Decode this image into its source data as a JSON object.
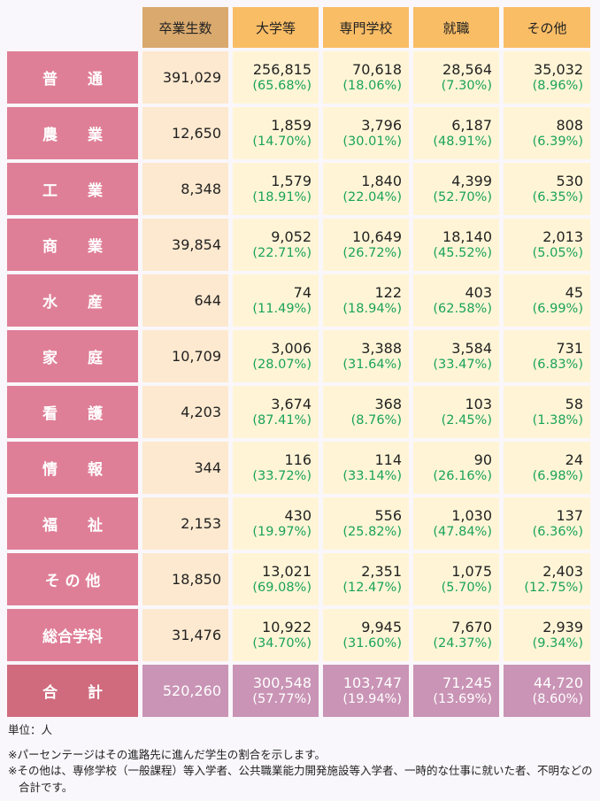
{
  "headers": [
    "卒業生数",
    "大学等",
    "専門学校",
    "就職",
    "その他"
  ],
  "rows": [
    {
      "label": "普　　通",
      "total": "391,029",
      "cells": [
        [
          "256,815",
          "(65.68%)"
        ],
        [
          "70,618",
          "(18.06%)"
        ],
        [
          "28,564",
          "(7.30%)"
        ],
        [
          "35,032",
          "(8.96%)"
        ]
      ]
    },
    {
      "label": "農　　業",
      "total": "12,650",
      "cells": [
        [
          "1,859",
          "(14.70%)"
        ],
        [
          "3,796",
          "(30.01%)"
        ],
        [
          "6,187",
          "(48.91%)"
        ],
        [
          "808",
          "(6.39%)"
        ]
      ]
    },
    {
      "label": "工　　業",
      "total": "8,348",
      "cells": [
        [
          "1,579",
          "(18.91%)"
        ],
        [
          "1,840",
          "(22.04%)"
        ],
        [
          "4,399",
          "(52.70%)"
        ],
        [
          "530",
          "(6.35%)"
        ]
      ]
    },
    {
      "label": "商　　業",
      "total": "39,854",
      "cells": [
        [
          "9,052",
          "(22.71%)"
        ],
        [
          "10,649",
          "(26.72%)"
        ],
        [
          "18,140",
          "(45.52%)"
        ],
        [
          "2,013",
          "(5.05%)"
        ]
      ]
    },
    {
      "label": "水　　産",
      "total": "644",
      "cells": [
        [
          "74",
          "(11.49%)"
        ],
        [
          "122",
          "(18.94%)"
        ],
        [
          "403",
          "(62.58%)"
        ],
        [
          "45",
          "(6.99%)"
        ]
      ]
    },
    {
      "label": "家　　庭",
      "total": "10,709",
      "cells": [
        [
          "3,006",
          "(28.07%)"
        ],
        [
          "3,388",
          "(31.64%)"
        ],
        [
          "3,584",
          "(33.47%)"
        ],
        [
          "731",
          "(6.83%)"
        ]
      ]
    },
    {
      "label": "看　　護",
      "total": "4,203",
      "cells": [
        [
          "3,674",
          "(87.41%)"
        ],
        [
          "368",
          "(8.76%)"
        ],
        [
          "103",
          "(2.45%)"
        ],
        [
          "58",
          "(1.38%)"
        ]
      ]
    },
    {
      "label": "情　　報",
      "total": "344",
      "cells": [
        [
          "116",
          "(33.72%)"
        ],
        [
          "114",
          "(33.14%)"
        ],
        [
          "90",
          "(26.16%)"
        ],
        [
          "24",
          "(6.98%)"
        ]
      ]
    },
    {
      "label": "福　　祉",
      "total": "2,153",
      "cells": [
        [
          "430",
          "(19.97%)"
        ],
        [
          "556",
          "(25.82%)"
        ],
        [
          "1,030",
          "(47.84%)"
        ],
        [
          "137",
          "(6.36%)"
        ]
      ]
    },
    {
      "label": "そ の 他",
      "total": "18,850",
      "cells": [
        [
          "13,021",
          "(69.08%)"
        ],
        [
          "2,351",
          "(12.47%)"
        ],
        [
          "1,075",
          "(5.70%)"
        ],
        [
          "2,403",
          "(12.75%)"
        ]
      ]
    },
    {
      "label": "総合学科",
      "total": "31,476",
      "cells": [
        [
          "10,922",
          "(34.70%)"
        ],
        [
          "9,945",
          "(31.60%)"
        ],
        [
          "7,670",
          "(24.37%)"
        ],
        [
          "2,939",
          "(9.34%)"
        ]
      ]
    }
  ],
  "total_row": {
    "label": "合　　計",
    "total": "520,260",
    "cells": [
      [
        "300,548",
        "(57.77%)"
      ],
      [
        "103,747",
        "(19.94%)"
      ],
      [
        "71,245",
        "(13.69%)"
      ],
      [
        "44,720",
        "(8.60%)"
      ]
    ]
  },
  "footer": {
    "unit": "単位：人",
    "note1": "※パーセンテージはその進路先に進んだ学生の割合を示します。",
    "note2a": "※その他は、専修学校（一般課程）等入学者、公共職業能力開発施設等入学者、一時的な仕事に就いた者、不明などの",
    "note2b": "合計です。"
  },
  "colors": {
    "header_first": "#d9a96e",
    "header": "#f9bd66",
    "label": "#df7f97",
    "total_label": "#cf6b7d",
    "cell_first": "#fde9cf",
    "cell": "#fff5d6",
    "total_cell": "#c994b5",
    "percent": "#1aa35a"
  }
}
